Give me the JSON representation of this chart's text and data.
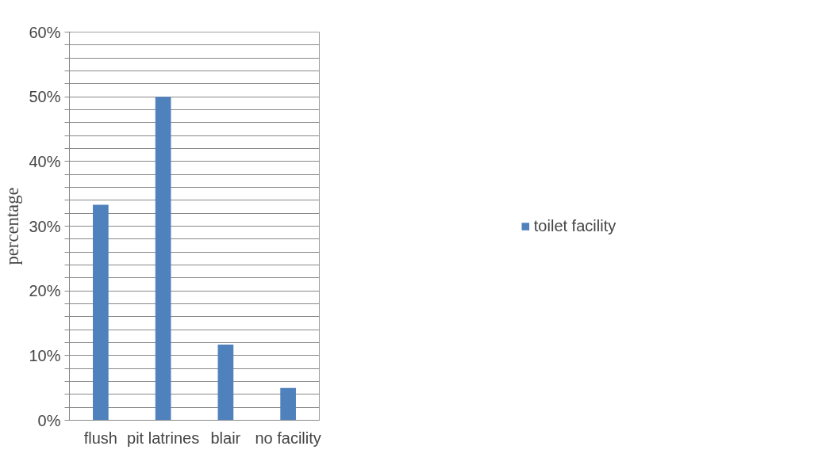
{
  "chart_data": {
    "type": "bar",
    "ylabel": "percentage",
    "categories": [
      "flush",
      "pit latrines",
      "blair",
      "no facility"
    ],
    "series": [
      {
        "name": "toilet facility",
        "color": "#4f81bd",
        "values": [
          33.3,
          50,
          11.7,
          5
        ]
      }
    ],
    "ylim": [
      0,
      60
    ],
    "yticks": [
      {
        "value": 0,
        "label": "0%"
      },
      {
        "value": 2,
        "label": null
      },
      {
        "value": 4,
        "label": null
      },
      {
        "value": 6,
        "label": null
      },
      {
        "value": 8,
        "label": null
      },
      {
        "value": 10,
        "label": "10%"
      },
      {
        "value": 12,
        "label": null
      },
      {
        "value": 14,
        "label": null
      },
      {
        "value": 16,
        "label": null
      },
      {
        "value": 18,
        "label": null
      },
      {
        "value": 20,
        "label": "20%"
      },
      {
        "value": 22,
        "label": null
      },
      {
        "value": 24,
        "label": null
      },
      {
        "value": 26,
        "label": null
      },
      {
        "value": 28,
        "label": null
      },
      {
        "value": 30,
        "label": "30%"
      },
      {
        "value": 32,
        "label": null
      },
      {
        "value": 34,
        "label": null
      },
      {
        "value": 36,
        "label": null
      },
      {
        "value": 38,
        "label": null
      },
      {
        "value": 40,
        "label": "40%"
      },
      {
        "value": 42,
        "label": null
      },
      {
        "value": 44,
        "label": null
      },
      {
        "value": 46,
        "label": null
      },
      {
        "value": 48,
        "label": null
      },
      {
        "value": 50,
        "label": "50%"
      },
      {
        "value": 52,
        "label": null
      },
      {
        "value": 54,
        "label": null
      },
      {
        "value": 56,
        "label": null
      },
      {
        "value": 58,
        "label": null
      },
      {
        "value": 60,
        "label": "60%"
      }
    ],
    "grid": "y",
    "legend": "right"
  }
}
